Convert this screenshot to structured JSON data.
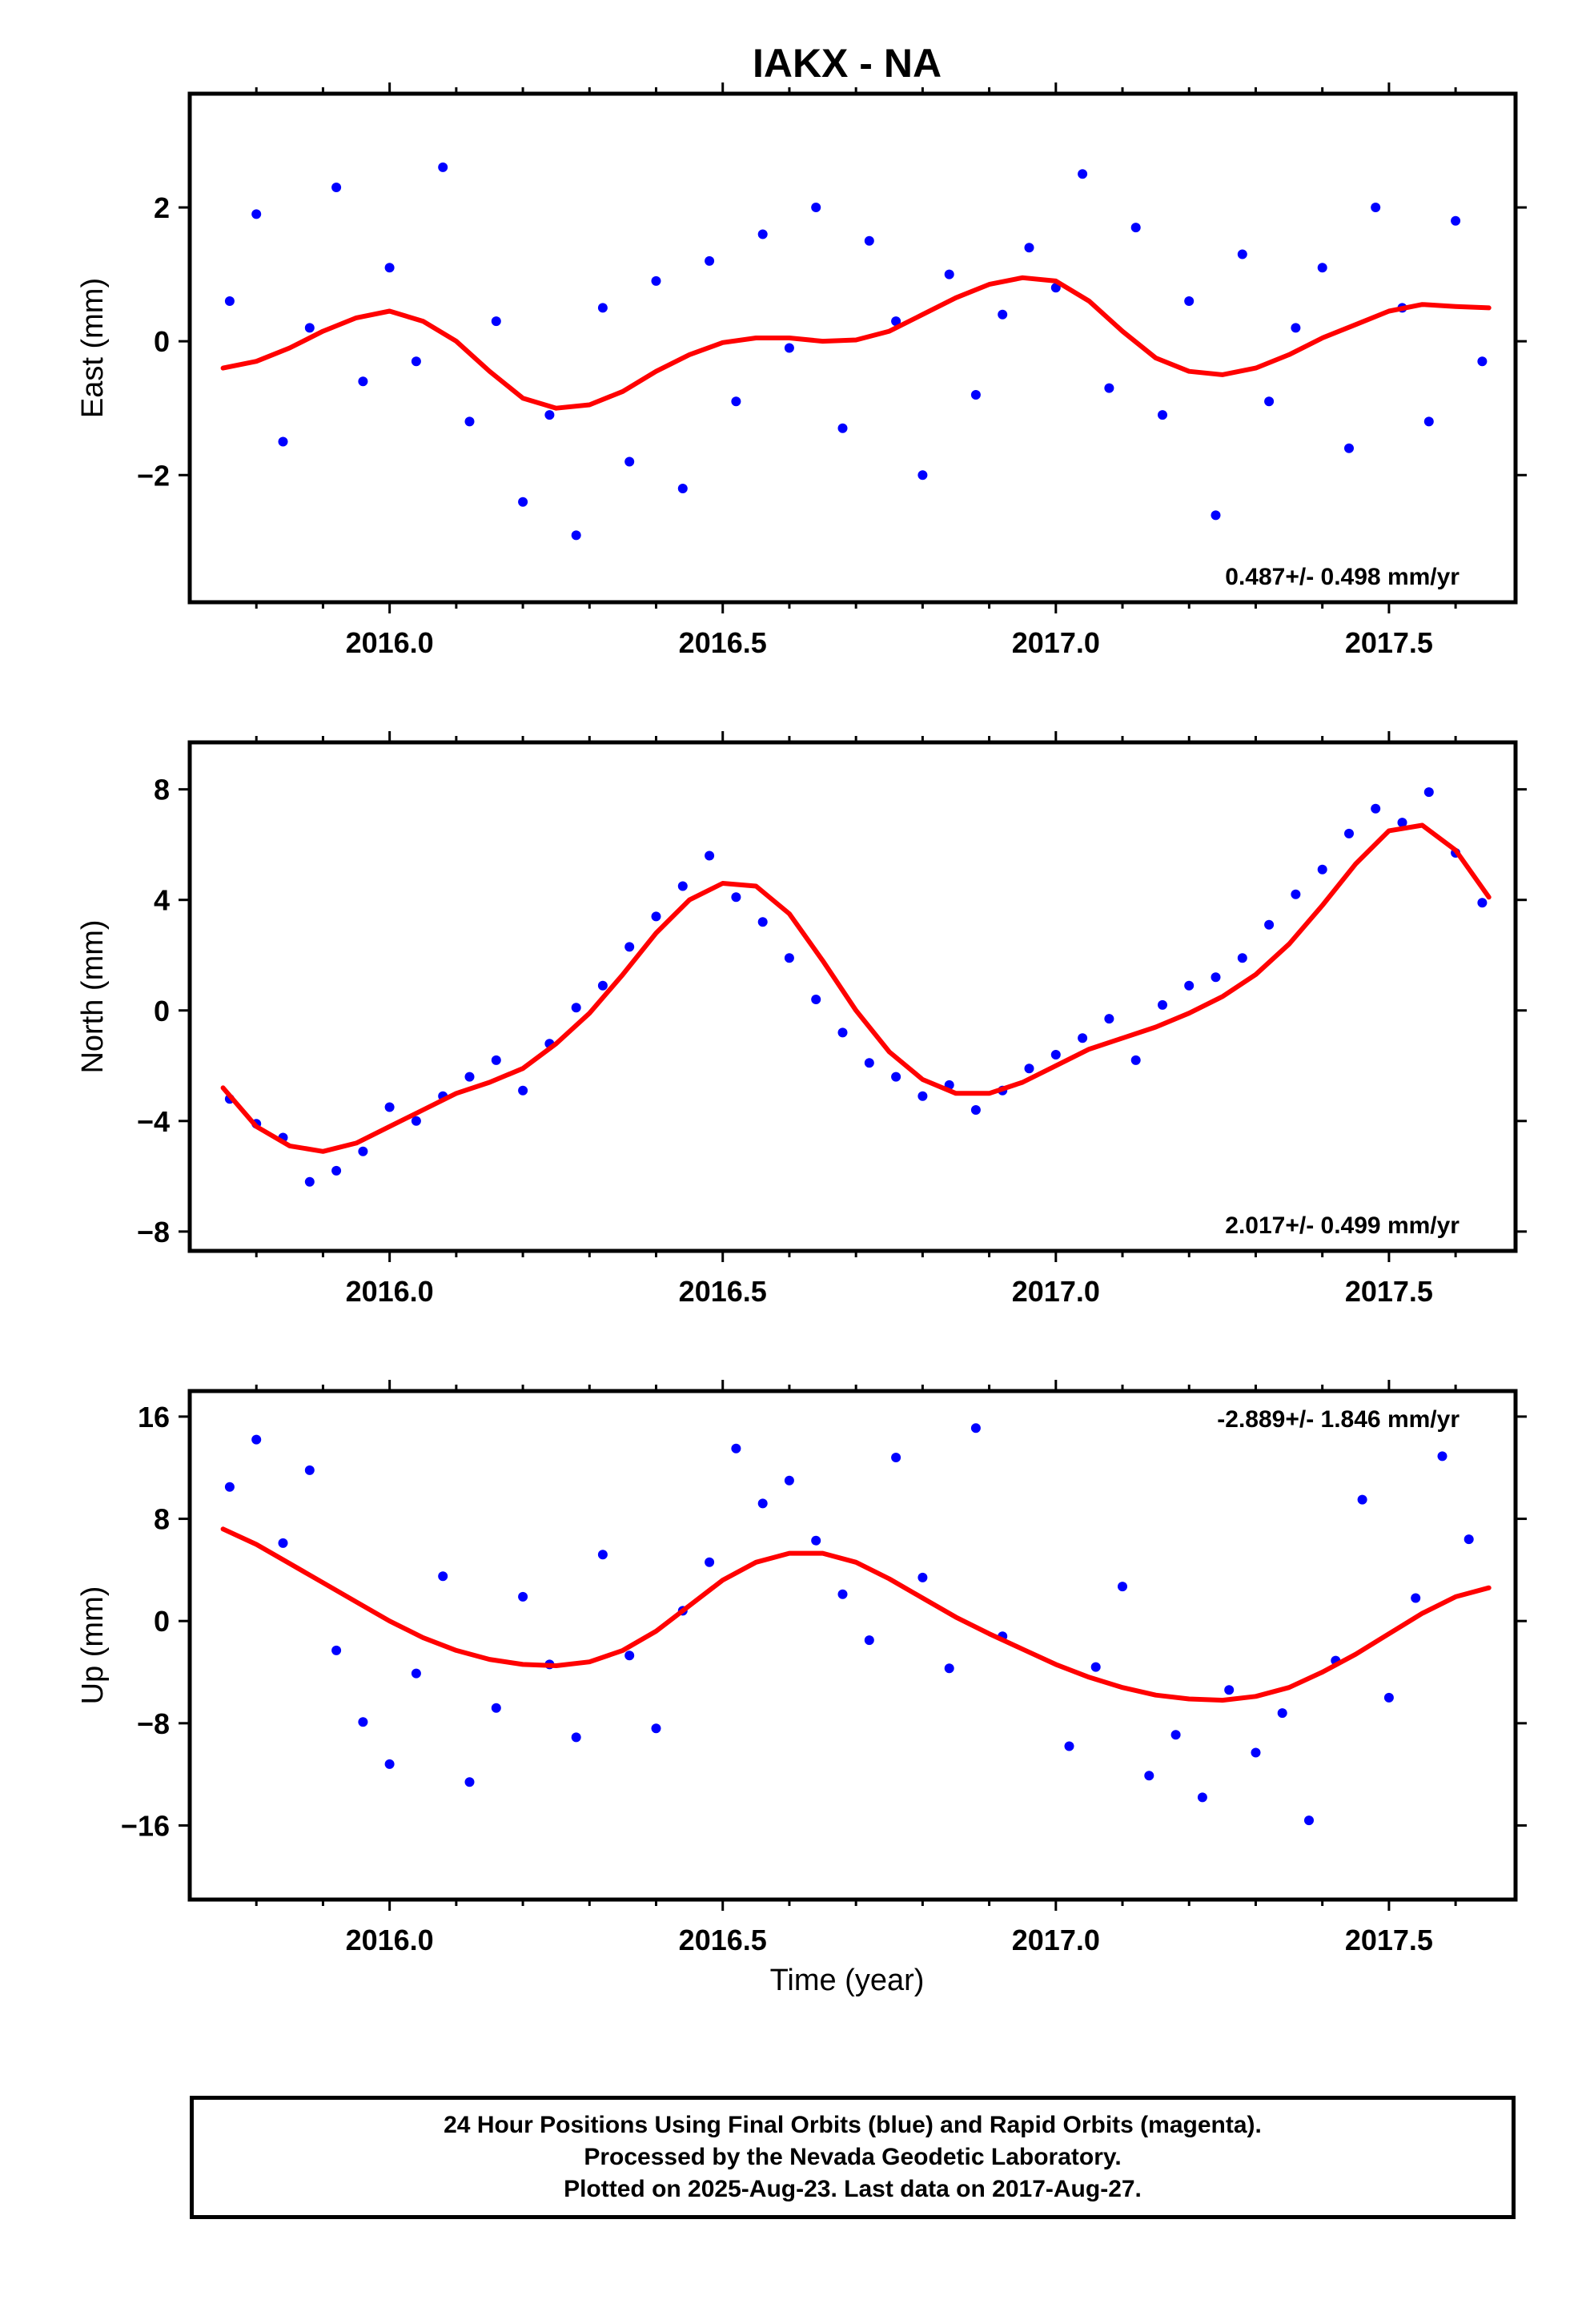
{
  "title": "IAKX - NA",
  "colors": {
    "points": "#0000ff",
    "fit": "#ff0000",
    "axes": "#000000"
  },
  "xlabel": "Time (year)",
  "footer": {
    "line1": "24 Hour Positions Using Final Orbits (blue) and Rapid Orbits (magenta).",
    "line2": "Processed by the Nevada Geodetic Laboratory.",
    "line3": "Plotted on 2025-Aug-23. Last data on 2017-Aug-27."
  },
  "chart_data": [
    {
      "type": "scatter",
      "ylabel": "East (mm)",
      "rate_text": "0.487+/- 0.498 mm/yr",
      "rate_position": "bottom-right",
      "xlim": [
        2015.7,
        2017.69
      ],
      "ylim": [
        -3.9,
        3.7
      ],
      "xticks": [
        2016.0,
        2016.5,
        2017.0,
        2017.5
      ],
      "xtick_labels": [
        "2016.0",
        "2016.5",
        "2017.0",
        "2017.5"
      ],
      "yticks": [
        -2,
        0,
        2
      ],
      "ytick_labels": [
        "−2",
        "0",
        "2"
      ],
      "grid": false,
      "series": [
        {
          "kind": "points",
          "x": [
            2015.76,
            2015.8,
            2015.84,
            2015.88,
            2015.92,
            2015.96,
            2016.0,
            2016.04,
            2016.08,
            2016.12,
            2016.16,
            2016.2,
            2016.24,
            2016.28,
            2016.32,
            2016.36,
            2016.4,
            2016.44,
            2016.48,
            2016.52,
            2016.56,
            2016.6,
            2016.64,
            2016.68,
            2016.72,
            2016.76,
            2016.8,
            2016.84,
            2016.88,
            2016.92,
            2016.96,
            2017.0,
            2017.04,
            2017.08,
            2017.12,
            2017.16,
            2017.2,
            2017.24,
            2017.28,
            2017.32,
            2017.36,
            2017.4,
            2017.44,
            2017.48,
            2017.52,
            2017.56,
            2017.6,
            2017.64
          ],
          "y": [
            0.6,
            1.9,
            -1.5,
            0.2,
            2.3,
            -0.6,
            1.1,
            -0.3,
            2.6,
            -1.2,
            0.3,
            -2.4,
            -1.1,
            -2.9,
            0.5,
            -1.8,
            0.9,
            -2.2,
            1.2,
            -0.9,
            1.6,
            -0.1,
            2.0,
            -1.3,
            1.5,
            0.3,
            -2.0,
            1.0,
            -0.8,
            0.4,
            1.4,
            0.8,
            2.5,
            -0.7,
            1.7,
            -1.1,
            0.6,
            -2.6,
            1.3,
            -0.9,
            0.2,
            1.1,
            -1.6,
            2.0,
            0.5,
            -1.2,
            1.8,
            -0.3
          ]
        },
        {
          "kind": "fit",
          "x": [
            2015.75,
            2015.8,
            2015.85,
            2015.9,
            2015.95,
            2016.0,
            2016.05,
            2016.1,
            2016.15,
            2016.2,
            2016.25,
            2016.3,
            2016.35,
            2016.4,
            2016.45,
            2016.5,
            2016.55,
            2016.6,
            2016.65,
            2016.7,
            2016.75,
            2016.8,
            2016.85,
            2016.9,
            2016.95,
            2017.0,
            2017.05,
            2017.1,
            2017.15,
            2017.2,
            2017.25,
            2017.3,
            2017.35,
            2017.4,
            2017.45,
            2017.5,
            2017.55,
            2017.6,
            2017.65
          ],
          "y": [
            -0.4,
            -0.3,
            -0.1,
            0.15,
            0.35,
            0.45,
            0.3,
            0.0,
            -0.45,
            -0.85,
            -1.0,
            -0.95,
            -0.75,
            -0.45,
            -0.2,
            -0.02,
            0.05,
            0.05,
            0.0,
            0.02,
            0.15,
            0.4,
            0.65,
            0.85,
            0.95,
            0.9,
            0.6,
            0.15,
            -0.25,
            -0.45,
            -0.5,
            -0.4,
            -0.2,
            0.05,
            0.25,
            0.45,
            0.55,
            0.52,
            0.5
          ]
        }
      ]
    },
    {
      "type": "scatter",
      "ylabel": "North (mm)",
      "rate_text": "2.017+/- 0.499 mm/yr",
      "rate_position": "bottom-right",
      "xlim": [
        2015.7,
        2017.69
      ],
      "ylim": [
        -8.7,
        9.7
      ],
      "xticks": [
        2016.0,
        2016.5,
        2017.0,
        2017.5
      ],
      "xtick_labels": [
        "2016.0",
        "2016.5",
        "2017.0",
        "2017.5"
      ],
      "yticks": [
        -8,
        -4,
        0,
        4,
        8
      ],
      "ytick_labels": [
        "−8",
        "−4",
        "0",
        "4",
        "8"
      ],
      "grid": false,
      "series": [
        {
          "kind": "points",
          "x": [
            2015.76,
            2015.8,
            2015.84,
            2015.88,
            2015.92,
            2015.96,
            2016.0,
            2016.04,
            2016.08,
            2016.12,
            2016.16,
            2016.2,
            2016.24,
            2016.28,
            2016.32,
            2016.36,
            2016.4,
            2016.44,
            2016.48,
            2016.52,
            2016.56,
            2016.6,
            2016.64,
            2016.68,
            2016.72,
            2016.76,
            2016.8,
            2016.84,
            2016.88,
            2016.92,
            2016.96,
            2017.0,
            2017.04,
            2017.08,
            2017.12,
            2017.16,
            2017.2,
            2017.24,
            2017.28,
            2017.32,
            2017.36,
            2017.4,
            2017.44,
            2017.48,
            2017.52,
            2017.56,
            2017.6,
            2017.64
          ],
          "y": [
            -3.2,
            -4.1,
            -4.6,
            -6.2,
            -5.8,
            -5.1,
            -3.5,
            -4.0,
            -3.1,
            -2.4,
            -1.8,
            -2.9,
            -1.2,
            0.1,
            0.9,
            2.3,
            3.4,
            4.5,
            5.6,
            4.1,
            3.2,
            1.9,
            0.4,
            -0.8,
            -1.9,
            -2.4,
            -3.1,
            -2.7,
            -3.6,
            -2.9,
            -2.1,
            -1.6,
            -1.0,
            -0.3,
            -1.8,
            0.2,
            0.9,
            1.2,
            1.9,
            3.1,
            4.2,
            5.1,
            6.4,
            7.3,
            6.8,
            7.9,
            5.7,
            3.9
          ]
        },
        {
          "kind": "fit",
          "x": [
            2015.75,
            2015.8,
            2015.85,
            2015.9,
            2015.95,
            2016.0,
            2016.05,
            2016.1,
            2016.15,
            2016.2,
            2016.25,
            2016.3,
            2016.35,
            2016.4,
            2016.45,
            2016.5,
            2016.55,
            2016.6,
            2016.65,
            2016.7,
            2016.75,
            2016.8,
            2016.85,
            2016.9,
            2016.95,
            2017.0,
            2017.05,
            2017.1,
            2017.15,
            2017.2,
            2017.25,
            2017.3,
            2017.35,
            2017.4,
            2017.45,
            2017.5,
            2017.55,
            2017.6,
            2017.65
          ],
          "y": [
            -2.8,
            -4.2,
            -4.9,
            -5.1,
            -4.8,
            -4.2,
            -3.6,
            -3.0,
            -2.6,
            -2.1,
            -1.2,
            -0.1,
            1.3,
            2.8,
            4.0,
            4.6,
            4.5,
            3.5,
            1.8,
            0.0,
            -1.5,
            -2.5,
            -3.0,
            -3.0,
            -2.6,
            -2.0,
            -1.4,
            -1.0,
            -0.6,
            -0.1,
            0.5,
            1.3,
            2.4,
            3.8,
            5.3,
            6.5,
            6.7,
            5.8,
            4.1
          ]
        }
      ]
    },
    {
      "type": "scatter",
      "ylabel": "Up (mm)",
      "rate_text": "-2.889+/- 1.846 mm/yr",
      "rate_position": "top-right",
      "xlim": [
        2015.7,
        2017.69
      ],
      "ylim": [
        -21.8,
        18.0
      ],
      "xticks": [
        2016.0,
        2016.5,
        2017.0,
        2017.5
      ],
      "xtick_labels": [
        "2016.0",
        "2016.5",
        "2017.0",
        "2017.5"
      ],
      "yticks": [
        -16,
        -8,
        0,
        8,
        16
      ],
      "ytick_labels": [
        "−16",
        "−8",
        "0",
        "8",
        "16"
      ],
      "grid": false,
      "series": [
        {
          "kind": "points",
          "x": [
            2015.76,
            2015.8,
            2015.84,
            2015.88,
            2015.92,
            2015.96,
            2016.0,
            2016.04,
            2016.08,
            2016.12,
            2016.16,
            2016.2,
            2016.24,
            2016.28,
            2016.32,
            2016.36,
            2016.4,
            2016.44,
            2016.48,
            2016.52,
            2016.56,
            2016.6,
            2016.64,
            2016.68,
            2016.72,
            2016.76,
            2016.8,
            2016.84,
            2016.88,
            2016.92,
            2017.02,
            2017.06,
            2017.1,
            2017.14,
            2017.18,
            2017.22,
            2017.26,
            2017.3,
            2017.34,
            2017.38,
            2017.42,
            2017.46,
            2017.5,
            2017.54,
            2017.58,
            2017.62
          ],
          "y": [
            10.5,
            14.2,
            6.1,
            11.8,
            -2.3,
            -7.9,
            -11.2,
            -4.1,
            3.5,
            -12.6,
            -6.8,
            1.9,
            -3.4,
            -9.1,
            5.2,
            -2.7,
            -8.4,
            0.8,
            4.6,
            13.5,
            9.2,
            11.0,
            6.3,
            2.1,
            -1.5,
            12.8,
            3.4,
            -3.7,
            15.1,
            -1.2,
            -9.8,
            -3.6,
            2.7,
            -12.1,
            -8.9,
            -13.8,
            -5.4,
            -10.3,
            -7.2,
            -15.6,
            -3.1,
            9.5,
            -6.0,
            1.8,
            12.9,
            6.4
          ]
        },
        {
          "kind": "fit",
          "x": [
            2015.75,
            2015.8,
            2015.85,
            2015.9,
            2015.95,
            2016.0,
            2016.05,
            2016.1,
            2016.15,
            2016.2,
            2016.25,
            2016.3,
            2016.35,
            2016.4,
            2016.45,
            2016.5,
            2016.55,
            2016.6,
            2016.65,
            2016.7,
            2016.75,
            2016.8,
            2016.85,
            2016.9,
            2016.95,
            2017.0,
            2017.05,
            2017.1,
            2017.15,
            2017.2,
            2017.25,
            2017.3,
            2017.35,
            2017.4,
            2017.45,
            2017.5,
            2017.55,
            2017.6,
            2017.65
          ],
          "y": [
            7.2,
            6.0,
            4.5,
            3.0,
            1.5,
            0.0,
            -1.3,
            -2.3,
            -3.0,
            -3.4,
            -3.5,
            -3.2,
            -2.3,
            -0.8,
            1.2,
            3.2,
            4.6,
            5.3,
            5.3,
            4.6,
            3.3,
            1.8,
            0.3,
            -1.0,
            -2.2,
            -3.4,
            -4.4,
            -5.2,
            -5.8,
            -6.1,
            -6.2,
            -5.9,
            -5.2,
            -4.0,
            -2.6,
            -1.0,
            0.6,
            1.9,
            2.6
          ]
        }
      ]
    }
  ]
}
